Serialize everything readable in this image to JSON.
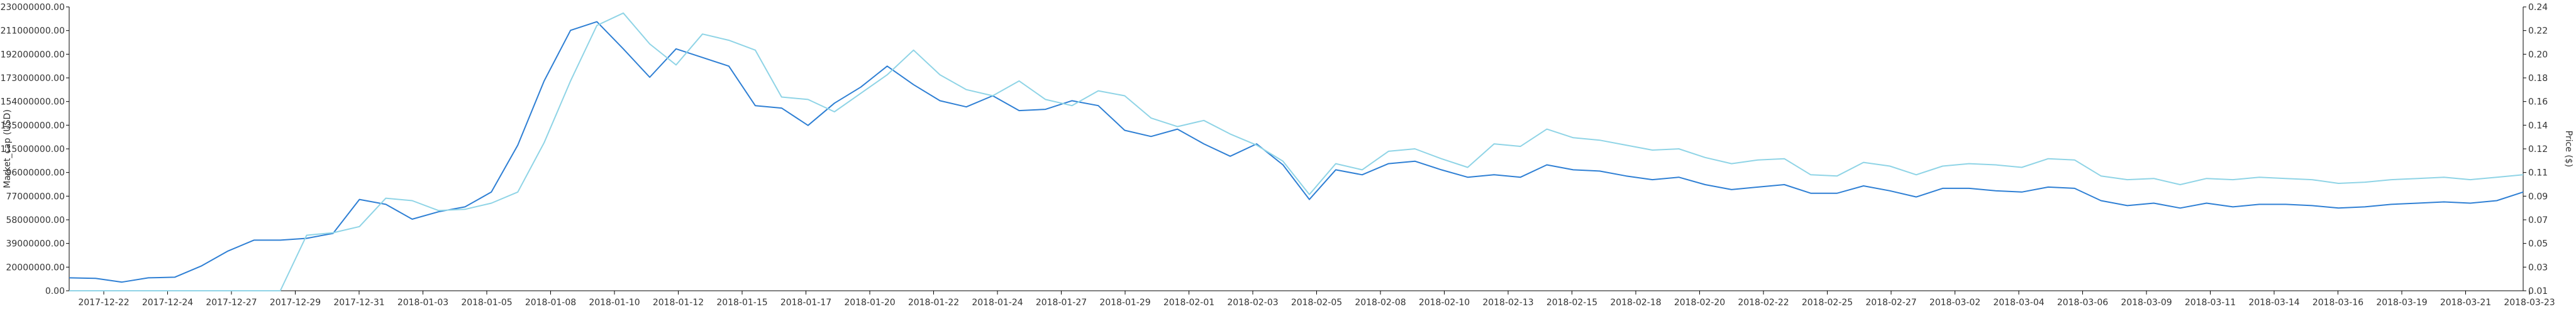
{
  "chart_data": {
    "type": "line",
    "title": "",
    "ylabel_left": "Market_cap (USD)",
    "ylabel_right": "Price ($)",
    "xlabel": "",
    "ylim_left": [
      0,
      230000000
    ],
    "ylim_right": [
      0.01,
      0.24
    ],
    "y_ticks_left": [
      "0.00",
      "20000000.00",
      "39000000.00",
      "58000000.00",
      "77000000.00",
      "96000000.00",
      "115000000.00",
      "135000000.00",
      "154000000.00",
      "173000000.00",
      "192000000.00",
      "211000000.00",
      "230000000.00"
    ],
    "y_ticks_right": [
      "0.01",
      "0.03",
      "0.05",
      "0.07",
      "0.09",
      "0.11",
      "0.12",
      "0.14",
      "0.16",
      "0.18",
      "0.20",
      "0.22",
      "0.24"
    ],
    "x_ticks": [
      "2017-12-22",
      "2017-12-24",
      "2017-12-27",
      "2017-12-29",
      "2017-12-31",
      "2018-01-03",
      "2018-01-05",
      "2018-01-08",
      "2018-01-10",
      "2018-01-12",
      "2018-01-15",
      "2018-01-17",
      "2018-01-20",
      "2018-01-22",
      "2018-01-24",
      "2018-01-27",
      "2018-01-29",
      "2018-02-01",
      "2018-02-03",
      "2018-02-05",
      "2018-02-08",
      "2018-02-10",
      "2018-02-13",
      "2018-02-15",
      "2018-02-18",
      "2018-02-20",
      "2018-02-22",
      "2018-02-25",
      "2018-02-27",
      "2018-03-02",
      "2018-03-04",
      "2018-03-06",
      "2018-03-09",
      "2018-03-11",
      "2018-03-14",
      "2018-03-16",
      "2018-03-19",
      "2018-03-21",
      "2018-03-23"
    ],
    "series": [
      {
        "name": "Market_cap",
        "axis": "left",
        "color": "#2e7fd4",
        "values": [
          10500000,
          10000000,
          7000000,
          10500000,
          11000000,
          20000000,
          32000000,
          41000000,
          41000000,
          42500000,
          46500000,
          74000000,
          70000000,
          58000000,
          64000000,
          68000000,
          80000000,
          118000000,
          170000000,
          211000000,
          218000000,
          196000000,
          173000000,
          196000000,
          189000000,
          182000000,
          150000000,
          148000000,
          134000000,
          152000000,
          165000000,
          182000000,
          167000000,
          154000000,
          149000000,
          158000000,
          146000000,
          147000000,
          154000000,
          150000000,
          130000000,
          125000000,
          131000000,
          119000000,
          109000000,
          119000000,
          102000000,
          74000000,
          98000000,
          94000000,
          103000000,
          105000000,
          98000000,
          92000000,
          94000000,
          92000000,
          102000000,
          98000000,
          97000000,
          93000000,
          90000000,
          92000000,
          86000000,
          82000000,
          84000000,
          86000000,
          79000000,
          79000000,
          85000000,
          81000000,
          76000000,
          83000000,
          83000000,
          81000000,
          80000000,
          84000000,
          83000000,
          73000000,
          69000000,
          71000000,
          67000000,
          71000000,
          68000000,
          70000000,
          70000000,
          69000000,
          67000000,
          68000000,
          70000000,
          71000000,
          72000000,
          71000000,
          73000000,
          80000000
        ]
      },
      {
        "name": "Price",
        "axis": "right",
        "color": "#8fd4e6",
        "values": [
          0.01,
          0.01,
          0.01,
          0.01,
          0.01,
          0.01,
          0.01,
          0.01,
          0.01,
          0.055,
          0.057,
          0.062,
          0.085,
          0.083,
          0.075,
          0.076,
          0.081,
          0.09,
          0.13,
          0.18,
          0.225,
          0.235,
          0.21,
          0.193,
          0.218,
          0.213,
          0.205,
          0.167,
          0.165,
          0.155,
          0.17,
          0.185,
          0.205,
          0.185,
          0.173,
          0.168,
          0.18,
          0.165,
          0.16,
          0.172,
          0.168,
          0.15,
          0.143,
          0.148,
          0.137,
          0.128,
          0.115,
          0.088,
          0.113,
          0.108,
          0.123,
          0.125,
          0.117,
          0.11,
          0.129,
          0.127,
          0.141,
          0.134,
          0.132,
          0.128,
          0.124,
          0.125,
          0.118,
          0.113,
          0.116,
          0.117,
          0.104,
          0.103,
          0.114,
          0.111,
          0.104,
          0.111,
          0.113,
          0.112,
          0.11,
          0.117,
          0.116,
          0.103,
          0.1,
          0.101,
          0.096,
          0.101,
          0.1,
          0.102,
          0.101,
          0.1,
          0.097,
          0.098,
          0.1,
          0.101,
          0.102,
          0.1,
          0.102,
          0.104
        ]
      }
    ],
    "grid": false,
    "legend": "none"
  }
}
